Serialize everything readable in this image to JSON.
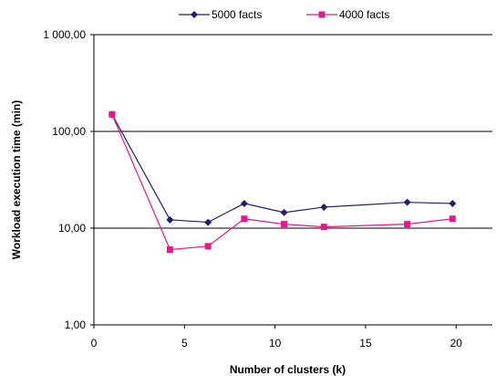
{
  "chart_data": {
    "type": "line",
    "title": "",
    "xlabel": "Number of clusters (k)",
    "ylabel": "Workload execution time (min)",
    "y_scale": "log",
    "xlim": [
      0,
      22
    ],
    "ylim": [
      1,
      1000
    ],
    "x_ticks": [
      0,
      5,
      10,
      15,
      20
    ],
    "y_ticks": [
      1,
      10,
      100,
      1000
    ],
    "x_tick_labels": [
      "0",
      "5",
      "10",
      "15",
      "20"
    ],
    "y_tick_labels": [
      "1,00",
      "10,00",
      "100,00",
      "1 000,00"
    ],
    "grid": "horizontal",
    "legend_position": "top",
    "series": [
      {
        "name": "5000 facts",
        "color": "#1f1f6e",
        "marker": "diamond",
        "x": [
          1,
          4.2,
          6.3,
          8.3,
          10.5,
          12.7,
          17.3,
          19.8
        ],
        "y": [
          150,
          12.2,
          11.5,
          18,
          14.5,
          16.5,
          18.5,
          18
        ]
      },
      {
        "name": "4000 facts",
        "color": "#e6178a",
        "marker": "square",
        "x": [
          1,
          4.2,
          6.3,
          8.3,
          10.5,
          12.7,
          17.3,
          19.8
        ],
        "y": [
          150,
          6,
          6.5,
          12.5,
          11,
          10.3,
          11,
          12.5
        ]
      }
    ]
  }
}
